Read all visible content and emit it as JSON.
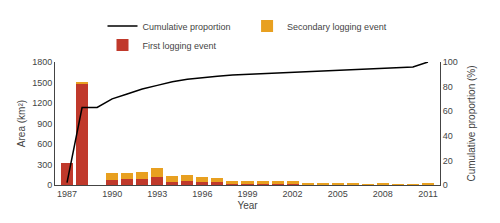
{
  "chart_data": {
    "type": "bar",
    "stacked": true,
    "x": [
      1987,
      1988,
      1989,
      1990,
      1991,
      1992,
      1993,
      1994,
      1995,
      1996,
      1997,
      1998,
      1999,
      2000,
      2001,
      2002,
      2003,
      2004,
      2005,
      2006,
      2007,
      2008,
      2009,
      2010,
      2011
    ],
    "xlabel": "Year",
    "ylabel": "Area (km²)",
    "y2label": "Cumulative proportion (%)",
    "xlim": [
      1986.2,
      2011.8
    ],
    "xticks": [
      1987,
      1990,
      1993,
      1996,
      1999,
      2002,
      2005,
      2008,
      2011
    ],
    "ylim": [
      0,
      1800
    ],
    "yticks": [
      0,
      300,
      600,
      900,
      1200,
      1500,
      1800
    ],
    "y2lim": [
      0,
      100
    ],
    "y2ticks": [
      0,
      20,
      40,
      60,
      80,
      100
    ],
    "grid": false,
    "legend": "top",
    "series": [
      {
        "name": "First logging event",
        "color": "#c0392b",
        "values": [
          320,
          1480,
          0,
          80,
          90,
          90,
          110,
          50,
          60,
          45,
          40,
          8,
          25,
          18,
          18,
          25,
          8,
          4,
          4,
          4,
          4,
          2,
          2,
          4,
          0
        ]
      },
      {
        "name": "Secondary logging event",
        "color": "#e8a020",
        "values": [
          0,
          15,
          0,
          90,
          80,
          100,
          140,
          85,
          85,
          65,
          65,
          48,
          28,
          40,
          35,
          28,
          18,
          22,
          18,
          13,
          9,
          13,
          9,
          4,
          18
        ]
      },
      {
        "name": "Cumulative proportion",
        "type": "line",
        "axis": "y2",
        "color": "#000000",
        "values": [
          2,
          63,
          63,
          70,
          74,
          78,
          81,
          84,
          86,
          87.5,
          88.5,
          89.5,
          90,
          91,
          91.5,
          92,
          92.5,
          93,
          93.5,
          94,
          94.5,
          95,
          95.5,
          96,
          100
        ]
      }
    ]
  }
}
